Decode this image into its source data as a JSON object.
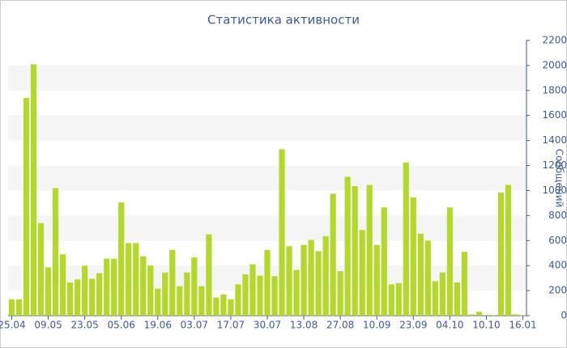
{
  "chart_data": {
    "type": "bar",
    "title": "Статистика активности",
    "y_label": "Сообщений",
    "categories": [
      "25.04",
      null,
      null,
      null,
      null,
      "09.05",
      null,
      null,
      null,
      null,
      "23.05",
      null,
      null,
      null,
      null,
      "05.06",
      null,
      null,
      null,
      null,
      "19.06",
      null,
      null,
      null,
      null,
      "03.07",
      null,
      null,
      null,
      null,
      "17.07",
      null,
      null,
      null,
      null,
      "30.07",
      null,
      null,
      null,
      null,
      "13.08",
      null,
      null,
      null,
      null,
      "27.08",
      null,
      null,
      null,
      null,
      "10.09",
      null,
      null,
      null,
      null,
      "23.09",
      null,
      null,
      null,
      null,
      "04.10",
      null,
      null,
      null,
      null,
      "10.10",
      null,
      null,
      null,
      null,
      "16.01"
    ],
    "values": [
      130,
      130,
      1740,
      2010,
      740,
      385,
      1020,
      490,
      265,
      290,
      400,
      295,
      340,
      455,
      455,
      905,
      580,
      580,
      475,
      400,
      215,
      345,
      525,
      235,
      345,
      465,
      235,
      650,
      145,
      170,
      130,
      250,
      330,
      410,
      320,
      525,
      315,
      1330,
      555,
      365,
      565,
      605,
      515,
      635,
      975,
      355,
      1110,
      1035,
      685,
      1045,
      565,
      865,
      250,
      260,
      1225,
      945,
      655,
      600,
      275,
      345,
      865,
      265,
      510,
      10,
      30,
      5,
      5,
      985,
      1045,
      10,
      5
    ],
    "color": "#b4d82a",
    "ylim": [
      0,
      2200
    ],
    "yticks": [
      0,
      200,
      400,
      600,
      800,
      1000,
      1200,
      1400,
      1600,
      1800,
      2000,
      2200
    ],
    "grid": true
  }
}
